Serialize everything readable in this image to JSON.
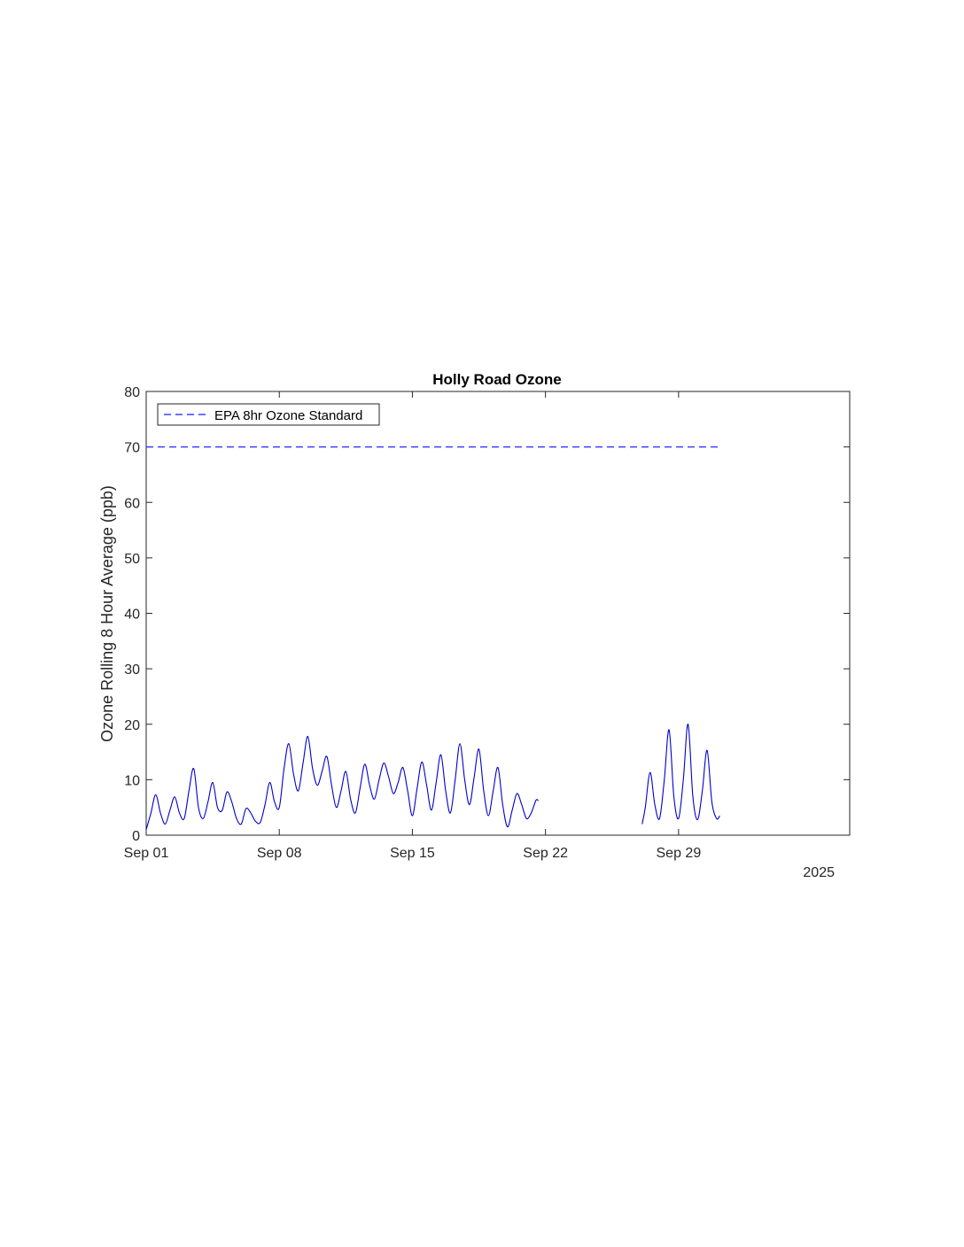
{
  "chart_data": {
    "type": "line",
    "title": "Holly Road Ozone",
    "xlabel": "",
    "ylabel": "Ozone Rolling 8 Hour Average (ppb)",
    "ylim": [
      0,
      80
    ],
    "yticks": [
      0,
      10,
      20,
      30,
      40,
      50,
      60,
      70,
      80
    ],
    "xlim": [
      "2025-09-01",
      "2025-10-08"
    ],
    "xticks": [
      "Sep 01",
      "Sep 08",
      "Sep 15",
      "Sep 22",
      "Sep 29"
    ],
    "xtick_dates": [
      "2025-09-01",
      "2025-09-08",
      "2025-09-15",
      "2025-09-22",
      "2025-09-29"
    ],
    "year_label": "2025",
    "grid": false,
    "legend": {
      "location": "top-left",
      "entries": [
        "EPA 8hr Ozone Standard"
      ]
    },
    "series": [
      {
        "name": "Ozone",
        "color": "#0000cc",
        "style": "solid",
        "segments": [
          [
            [
              "2025-09-01T00:00",
              1.0
            ],
            [
              "2025-09-01T06:00",
              4.0
            ],
            [
              "2025-09-01T12:00",
              7.3
            ],
            [
              "2025-09-01T18:00",
              4.0
            ],
            [
              "2025-09-02T00:00",
              2.0
            ],
            [
              "2025-09-02T06:00",
              4.5
            ],
            [
              "2025-09-02T12:00",
              6.9
            ],
            [
              "2025-09-02T18:00",
              4.0
            ],
            [
              "2025-09-03T00:00",
              3.0
            ],
            [
              "2025-09-03T06:00",
              8.0
            ],
            [
              "2025-09-03T12:00",
              12.0
            ],
            [
              "2025-09-03T18:00",
              5.0
            ],
            [
              "2025-09-04T00:00",
              3.0
            ],
            [
              "2025-09-04T06:00",
              6.0
            ],
            [
              "2025-09-04T12:00",
              9.5
            ],
            [
              "2025-09-04T18:00",
              5.0
            ],
            [
              "2025-09-05T00:00",
              4.5
            ],
            [
              "2025-09-05T06:00",
              7.8
            ],
            [
              "2025-09-05T12:00",
              6.0
            ],
            [
              "2025-09-05T18:00",
              3.0
            ],
            [
              "2025-09-06T00:00",
              2.0
            ],
            [
              "2025-09-06T06:00",
              4.8
            ],
            [
              "2025-09-06T12:00",
              4.0
            ],
            [
              "2025-09-06T18:00",
              2.5
            ],
            [
              "2025-09-07T00:00",
              2.3
            ],
            [
              "2025-09-07T06:00",
              5.5
            ],
            [
              "2025-09-07T12:00",
              9.5
            ],
            [
              "2025-09-07T18:00",
              6.0
            ],
            [
              "2025-09-08T00:00",
              5.0
            ],
            [
              "2025-09-08T06:00",
              12.0
            ],
            [
              "2025-09-08T12:00",
              16.5
            ],
            [
              "2025-09-08T18:00",
              11.0
            ],
            [
              "2025-09-09T00:00",
              8.0
            ],
            [
              "2025-09-09T06:00",
              13.0
            ],
            [
              "2025-09-09T12:00",
              17.8
            ],
            [
              "2025-09-09T18:00",
              12.0
            ],
            [
              "2025-09-10T00:00",
              9.0
            ],
            [
              "2025-09-10T06:00",
              11.5
            ],
            [
              "2025-09-10T12:00",
              14.2
            ],
            [
              "2025-09-10T18:00",
              9.0
            ],
            [
              "2025-09-11T00:00",
              5.0
            ],
            [
              "2025-09-11T06:00",
              8.0
            ],
            [
              "2025-09-11T12:00",
              11.5
            ],
            [
              "2025-09-11T18:00",
              6.5
            ],
            [
              "2025-09-12T00:00",
              4.0
            ],
            [
              "2025-09-12T06:00",
              8.5
            ],
            [
              "2025-09-12T12:00",
              12.8
            ],
            [
              "2025-09-12T18:00",
              9.0
            ],
            [
              "2025-09-13T00:00",
              6.5
            ],
            [
              "2025-09-13T06:00",
              10.0
            ],
            [
              "2025-09-13T12:00",
              13.0
            ],
            [
              "2025-09-13T18:00",
              10.5
            ],
            [
              "2025-09-14T00:00",
              7.5
            ],
            [
              "2025-09-14T06:00",
              9.5
            ],
            [
              "2025-09-14T12:00",
              12.2
            ],
            [
              "2025-09-14T18:00",
              8.0
            ],
            [
              "2025-09-15T00:00",
              3.5
            ],
            [
              "2025-09-15T06:00",
              8.5
            ],
            [
              "2025-09-15T12:00",
              13.2
            ],
            [
              "2025-09-15T18:00",
              9.0
            ],
            [
              "2025-09-16T00:00",
              4.5
            ],
            [
              "2025-09-16T06:00",
              9.5
            ],
            [
              "2025-09-16T12:00",
              14.5
            ],
            [
              "2025-09-16T18:00",
              8.0
            ],
            [
              "2025-09-17T00:00",
              4.0
            ],
            [
              "2025-09-17T06:00",
              10.0
            ],
            [
              "2025-09-17T12:00",
              16.5
            ],
            [
              "2025-09-17T18:00",
              10.0
            ],
            [
              "2025-09-18T00:00",
              5.5
            ],
            [
              "2025-09-18T06:00",
              10.5
            ],
            [
              "2025-09-18T12:00",
              15.5
            ],
            [
              "2025-09-18T18:00",
              8.0
            ],
            [
              "2025-09-19T00:00",
              3.5
            ],
            [
              "2025-09-19T06:00",
              8.0
            ],
            [
              "2025-09-19T12:00",
              12.2
            ],
            [
              "2025-09-19T18:00",
              5.5
            ],
            [
              "2025-09-20T00:00",
              1.5
            ],
            [
              "2025-09-20T06:00",
              4.5
            ],
            [
              "2025-09-20T12:00",
              7.5
            ],
            [
              "2025-09-20T18:00",
              5.5
            ],
            [
              "2025-09-21T00:00",
              3.0
            ],
            [
              "2025-09-21T06:00",
              4.0
            ],
            [
              "2025-09-21T12:00",
              6.3
            ],
            [
              "2025-09-21T15:00",
              6.2
            ]
          ],
          [
            [
              "2025-09-27T02:00",
              2.0
            ],
            [
              "2025-09-27T06:00",
              5.0
            ],
            [
              "2025-09-27T12:00",
              11.3
            ],
            [
              "2025-09-27T18:00",
              5.5
            ],
            [
              "2025-09-28T00:00",
              3.0
            ],
            [
              "2025-09-28T06:00",
              10.0
            ],
            [
              "2025-09-28T12:00",
              19.0
            ],
            [
              "2025-09-28T18:00",
              7.0
            ],
            [
              "2025-09-29T00:00",
              3.0
            ],
            [
              "2025-09-29T06:00",
              10.0
            ],
            [
              "2025-09-29T12:00",
              20.0
            ],
            [
              "2025-09-29T18:00",
              7.0
            ],
            [
              "2025-09-30T00:00",
              2.8
            ],
            [
              "2025-09-30T06:00",
              8.0
            ],
            [
              "2025-09-30T12:00",
              15.3
            ],
            [
              "2025-09-30T18:00",
              6.0
            ],
            [
              "2025-10-01T00:00",
              3.0
            ],
            [
              "2025-10-01T04:00",
              3.5
            ]
          ]
        ]
      },
      {
        "name": "EPA 8hr Ozone Standard",
        "color": "#4040ff",
        "style": "dashed",
        "segments": [
          [
            [
              "2025-09-01T00:00",
              70
            ],
            [
              "2025-10-01T04:00",
              70
            ]
          ]
        ]
      }
    ]
  }
}
